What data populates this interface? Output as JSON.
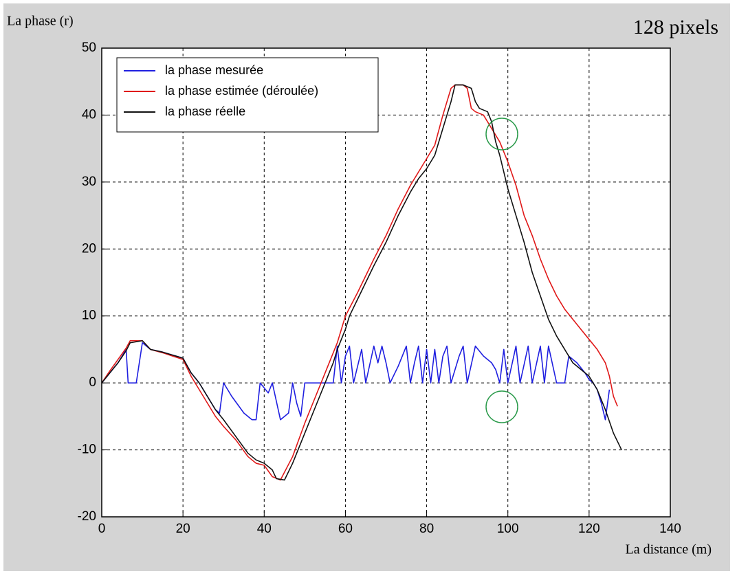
{
  "chart_data": {
    "type": "line",
    "ylabel": "La phase (r)",
    "xlabel": "La distance (m)",
    "annotation": "128 pixels",
    "xlim": [
      0,
      140
    ],
    "xticks": [
      0,
      20,
      40,
      60,
      80,
      100,
      120,
      140
    ],
    "ylim": [
      -20,
      50
    ],
    "yticks": [
      -20,
      -10,
      0,
      10,
      20,
      30,
      40,
      50
    ],
    "grid": true,
    "legend": "upper left",
    "series": [
      {
        "name": "la phase mesurée",
        "color": "#1f1fe0",
        "x": [
          0,
          2,
          4,
          6,
          6.5,
          8.5,
          10,
          12,
          15,
          20,
          22,
          24,
          26,
          28,
          29,
          30,
          32,
          35,
          37,
          38,
          39,
          41,
          42,
          44,
          46,
          47,
          48,
          49,
          50,
          57,
          58,
          59,
          60,
          61,
          62,
          64,
          65,
          67,
          68,
          69,
          70,
          71,
          73,
          75,
          76,
          77,
          78,
          79,
          80,
          81,
          82,
          83,
          84,
          85,
          86,
          88,
          89,
          90,
          92,
          94,
          96,
          97,
          98,
          99,
          100,
          102,
          103,
          105,
          106,
          108,
          109,
          110,
          112,
          114,
          115,
          117,
          119,
          120,
          121,
          122,
          123,
          124,
          125
        ],
        "values": [
          0,
          1.5,
          3,
          5,
          0,
          0,
          6,
          5,
          4.6,
          3.7,
          1.5,
          0,
          -2,
          -4,
          -4.5,
          0,
          -2,
          -4.5,
          -5.5,
          -5.5,
          0,
          -1.5,
          0,
          -5.5,
          -4.5,
          0,
          -3,
          -5,
          0,
          0,
          5.5,
          0,
          4,
          5.5,
          0,
          5,
          0,
          5.5,
          3,
          5.5,
          3,
          0,
          2.5,
          5.5,
          0,
          3,
          5.5,
          0,
          5,
          0,
          5,
          0,
          4,
          5.5,
          0,
          4,
          5.5,
          0,
          5.5,
          4,
          3,
          2,
          0,
          5,
          0,
          5.5,
          0,
          5.5,
          0,
          5.5,
          0,
          5.5,
          0,
          0,
          4,
          3,
          1.5,
          0.5,
          0,
          -1,
          -3,
          -5.5,
          -1
        ]
      },
      {
        "name": "la phase estimée (déroulée)",
        "color": "#e01818",
        "x": [
          0,
          2,
          4,
          6,
          7,
          10,
          12,
          15,
          20,
          22,
          24,
          26,
          28,
          30,
          33,
          36,
          38,
          40,
          42,
          44,
          47,
          50,
          53,
          55,
          57,
          58,
          60,
          63,
          65,
          67,
          70,
          73,
          76,
          78,
          80,
          82,
          84,
          86,
          87,
          89,
          90,
          91,
          92,
          94,
          96,
          98,
          100,
          102,
          104,
          106,
          108,
          110,
          112,
          114,
          116,
          118,
          120,
          122,
          124,
          125,
          126,
          127
        ],
        "values": [
          0,
          1.8,
          3.5,
          5.2,
          6.3,
          6.3,
          5,
          4.5,
          3.5,
          1,
          -1,
          -3,
          -5,
          -6.5,
          -8.5,
          -11,
          -12,
          -12.3,
          -14,
          -14.5,
          -11,
          -6,
          -1.5,
          1.5,
          4.5,
          6,
          10,
          13.5,
          16,
          18.5,
          22,
          26,
          29.5,
          31.5,
          33.5,
          35.5,
          40,
          44,
          44.5,
          44.5,
          44,
          41,
          40.5,
          40,
          38,
          36,
          33,
          29.5,
          25,
          22,
          18.5,
          15.5,
          13,
          11,
          9.5,
          8,
          6.5,
          5,
          3,
          1,
          -2,
          -3.5
        ]
      },
      {
        "name": "la phase réelle",
        "color": "#111111",
        "x": [
          0,
          2,
          4,
          6,
          7,
          10,
          12,
          15,
          20,
          22,
          24,
          26,
          28,
          30,
          33,
          36,
          38,
          40,
          42,
          43,
          45,
          47,
          50,
          53,
          55,
          57,
          58,
          60,
          61,
          63,
          65,
          67,
          70,
          73,
          76,
          78,
          80,
          82,
          84,
          86,
          87,
          89,
          91,
          92,
          93,
          95,
          96,
          97,
          98,
          100,
          102,
          104,
          106,
          108,
          110,
          112,
          114,
          116,
          118,
          120,
          122,
          124,
          126,
          128
        ],
        "values": [
          0,
          1.5,
          3,
          4.8,
          6,
          6.3,
          5,
          4.6,
          3.7,
          1.5,
          0,
          -2,
          -4,
          -5.5,
          -8,
          -10.5,
          -11.5,
          -12,
          -13,
          -14.3,
          -14.5,
          -12,
          -7.5,
          -3,
          0,
          3,
          5,
          8,
          10,
          12.5,
          15,
          17.5,
          21,
          25,
          28.5,
          30.5,
          32,
          34,
          38,
          42,
          44.5,
          44.5,
          44,
          42,
          41,
          40.5,
          39,
          36,
          34,
          29,
          25,
          21,
          16.5,
          13,
          9.5,
          7,
          5,
          3,
          2,
          1,
          -1,
          -4,
          -7.5,
          -10
        ]
      }
    ]
  }
}
